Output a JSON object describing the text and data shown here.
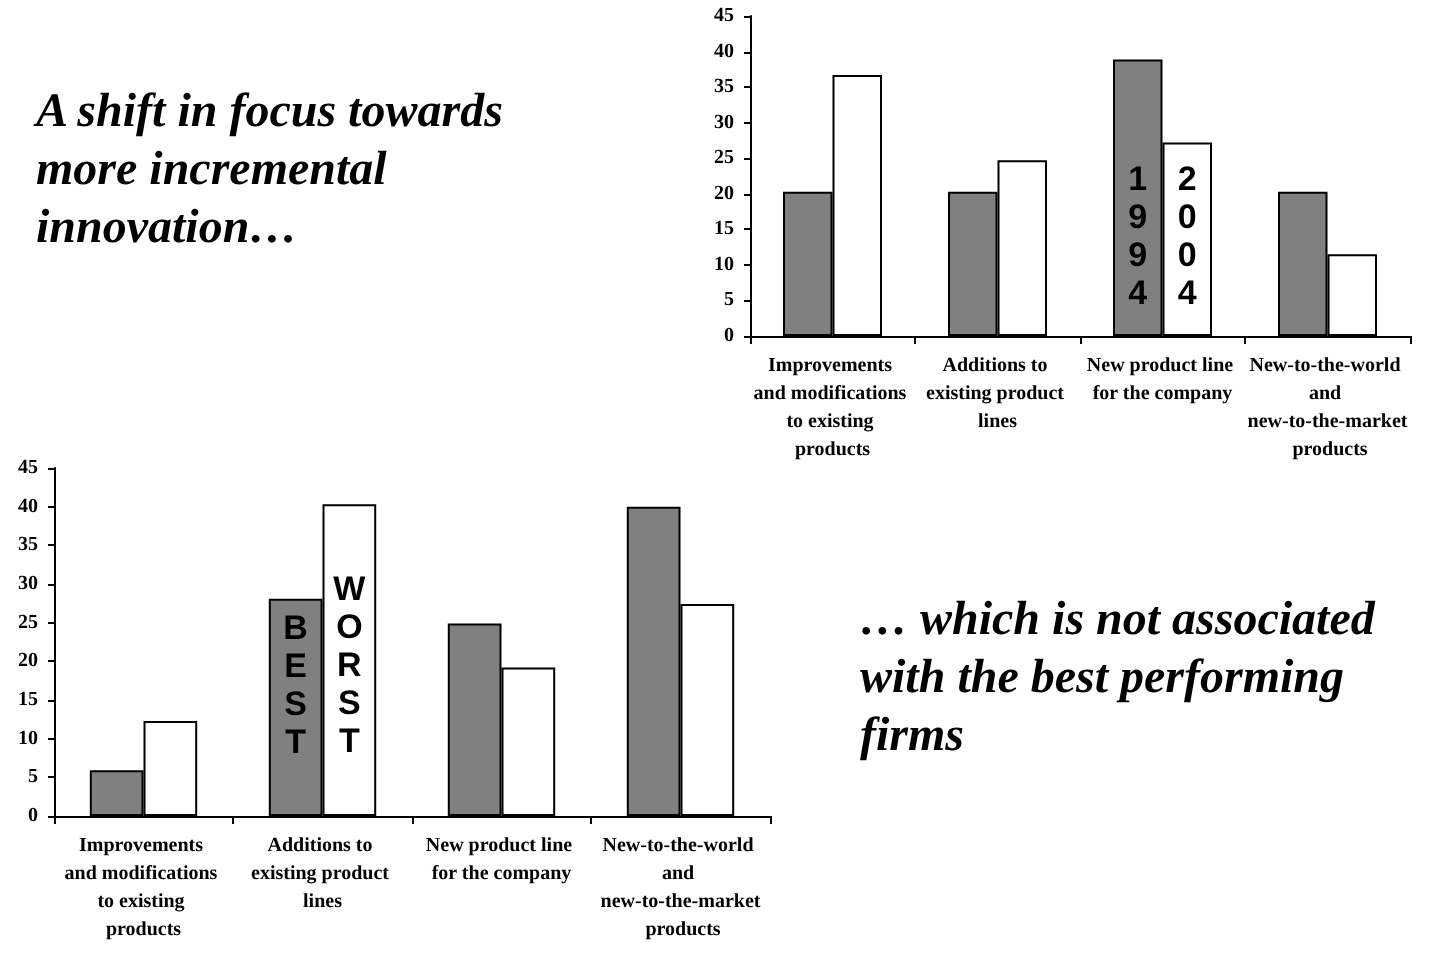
{
  "chart_data": [
    {
      "type": "bar",
      "title": "A shift in focus towards more incremental innovation…",
      "categories": [
        "Improvements and modifications to existing products",
        "Additions to existing product lines",
        "New product line for the company",
        "New-to-the-world and new-to-the-market products"
      ],
      "series": [
        {
          "color": "#808080",
          "values": [
            20.3,
            20.3,
            38.9,
            20.3
          ]
        },
        {
          "color": "#ffffff",
          "values": [
            36.7,
            24.7,
            27.2,
            11.5
          ]
        }
      ],
      "annotations": [
        {
          "text": "1994",
          "x": "New product line for the company",
          "y": 14
        },
        {
          "text": "2004",
          "x": "New product line for the company",
          "y": 14
        }
      ],
      "ylim": [
        0,
        45
      ],
      "yticks": [
        0,
        5,
        10,
        15,
        20,
        25,
        30,
        35,
        40,
        45
      ],
      "grid": false
    },
    {
      "type": "bar",
      "categories": [
        "Improvements and modifications to existing products",
        "Additions to existing product lines",
        "New product line for the company",
        "New-to-the-world and new-to-the-market products"
      ],
      "series": [
        {
          "color": "#808080",
          "values": [
            5.9,
            28.1,
            24.9,
            40
          ]
        },
        {
          "color": "#ffffff",
          "values": [
            12.3,
            40.3,
            19.2,
            27.4
          ]
        }
      ],
      "annotations": [
        "… which is not associated with the best performing firms",
        {
          "text": "BEST",
          "x": "Additions to existing product lines",
          "y": 17
        },
        {
          "text": "WORST",
          "x": "Additions to existing product lines",
          "y": 19.5
        }
      ],
      "ylim": [
        0,
        45
      ],
      "yticks": [
        0,
        5,
        10,
        15,
        20,
        25,
        30,
        35,
        40,
        45
      ],
      "grid": false
    }
  ]
}
